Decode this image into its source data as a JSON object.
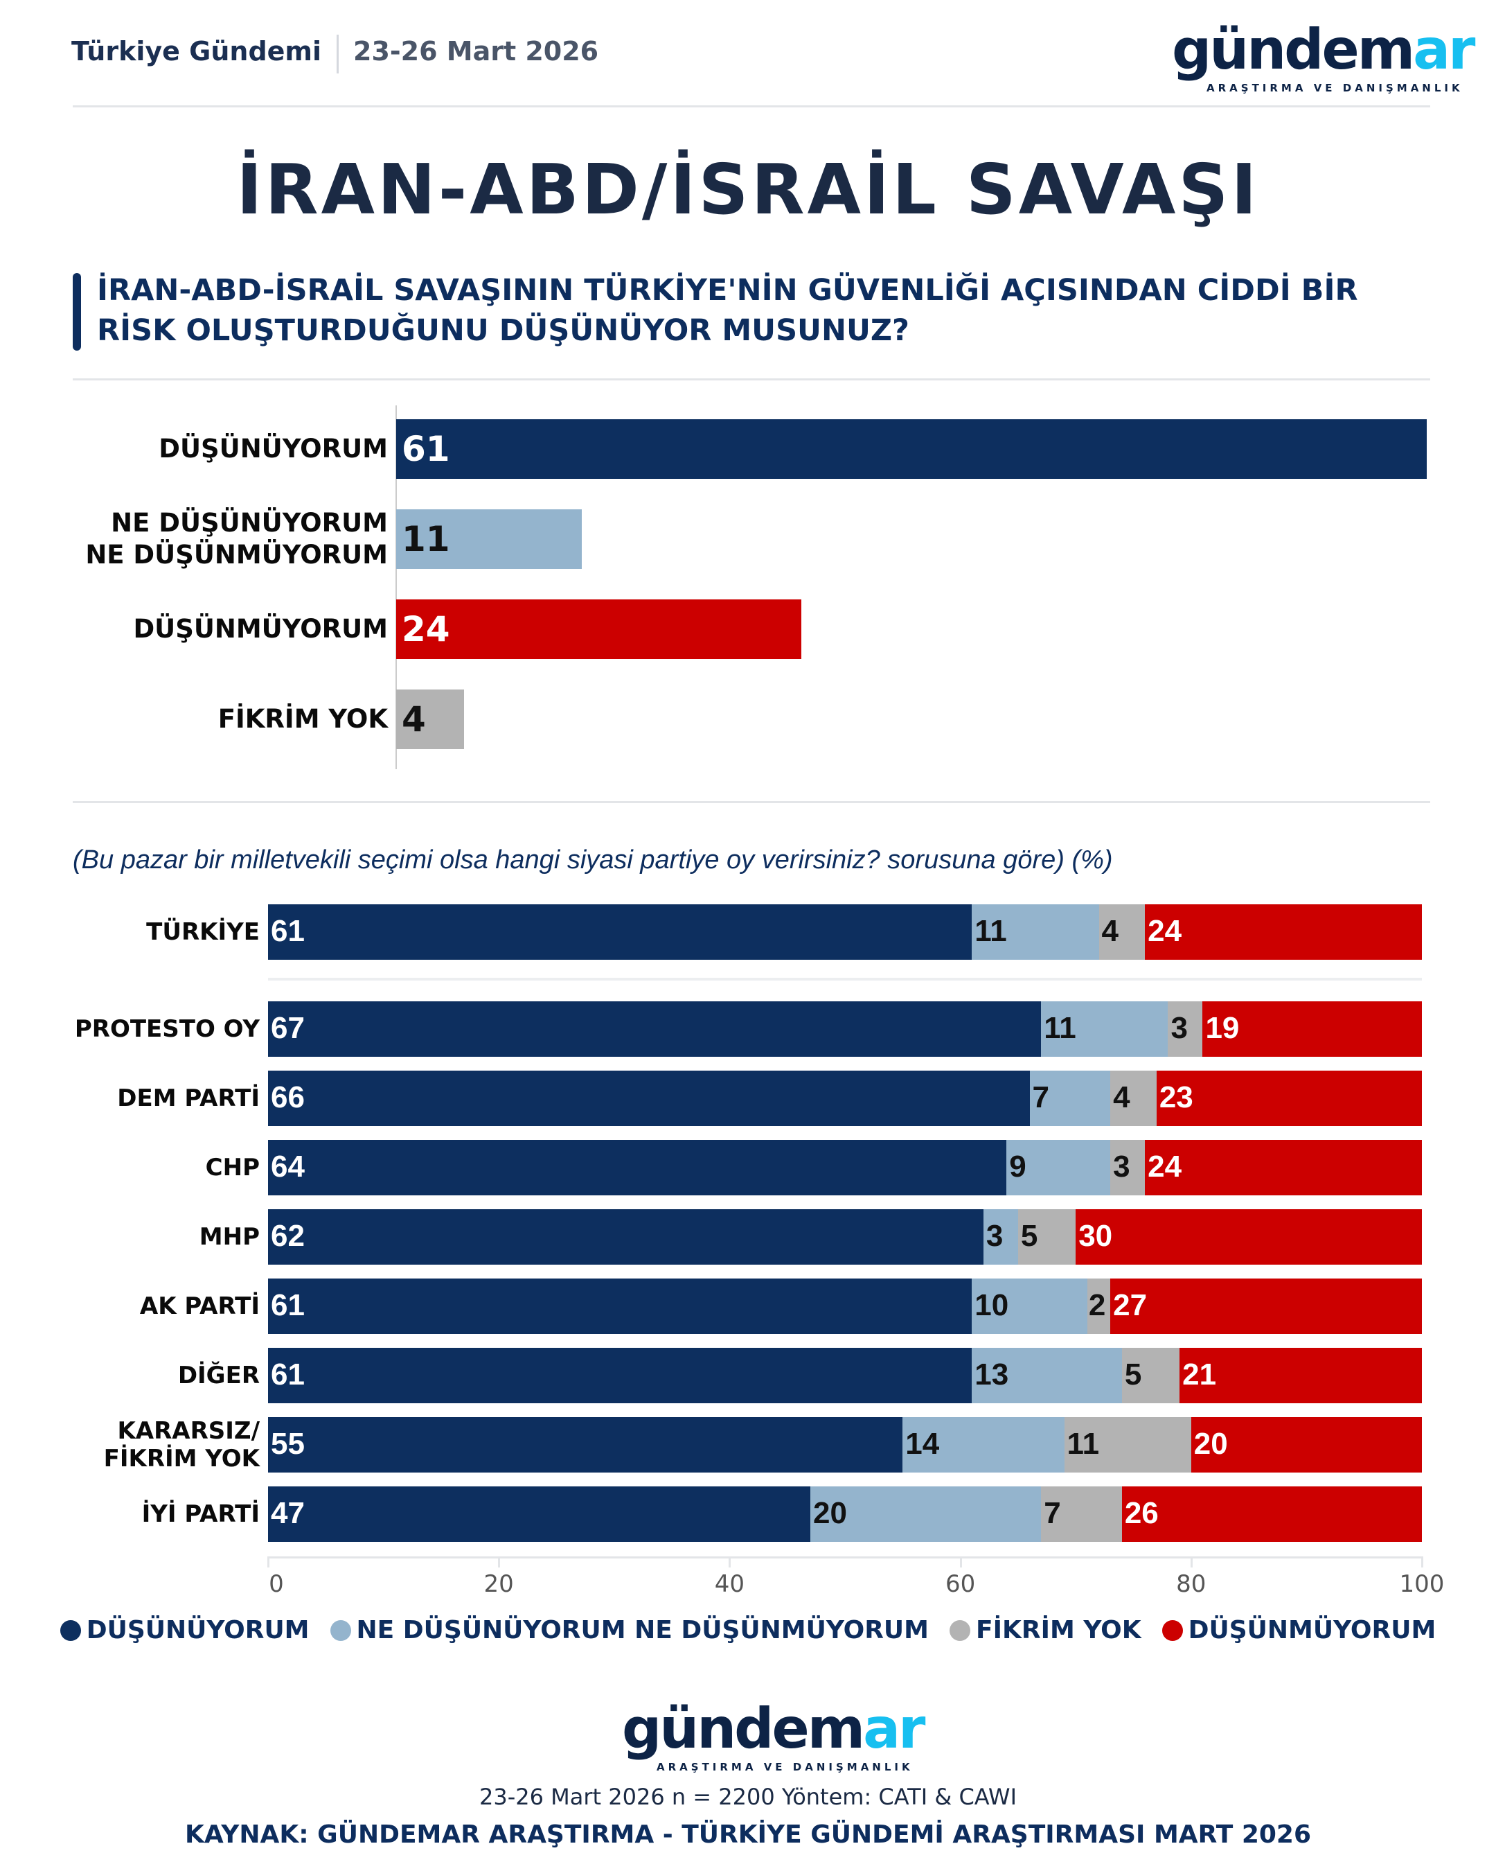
{
  "header": {
    "topic": "Türkiye Gündemi",
    "date": "23-26 Mart 2026"
  },
  "logo": {
    "main": "gündem",
    "accent": "ar",
    "tagline": "ARAŞTIRMA VE DANIŞMANLIK"
  },
  "title": "İRAN-ABD/İSRAİL SAVAŞI",
  "question": "İRAN-ABD-İSRAİL SAVAŞININ TÜRKİYE'NİN GÜVENLİĞİ AÇISINDAN CİDDİ BİR RİSK OLUŞTURDUĞUNU DÜŞÜNÜYOR MUSUNUZ?",
  "colors": {
    "dusunuyorum": "#0d2f5f",
    "neither": "#94b4cd",
    "fikrim_yok": "#b3b3b3",
    "dusunmuyorum": "#cc0000"
  },
  "chart_data": [
    {
      "type": "bar",
      "orientation": "horizontal",
      "categories": [
        "DÜŞÜNÜYORUM",
        "NE DÜŞÜNÜYORUM NE DÜŞÜNMÜYORUM",
        "DÜŞÜNMÜYORUM",
        "FİKRİM YOK"
      ],
      "category_lines": [
        [
          "DÜŞÜNÜYORUM"
        ],
        [
          "NE DÜŞÜNÜYORUM",
          "NE DÜŞÜNMÜYORUM"
        ],
        [
          "DÜŞÜNMÜYORUM"
        ],
        [
          "FİKRİM YOK"
        ]
      ],
      "values": [
        61,
        11,
        24,
        4
      ],
      "colors": [
        "#0d2f5f",
        "#94b4cd",
        "#cc0000",
        "#b3b3b3"
      ]
    },
    {
      "type": "bar",
      "stacked": true,
      "orientation": "horizontal",
      "subtitle": "(Bu pazar bir milletvekili seçimi olsa hangi siyasi partiye oy verirsiniz? sorusuna göre) (%)",
      "categories": [
        "TÜRKİYE",
        "PROTESTO OY",
        "DEM PARTİ",
        "CHP",
        "MHP",
        "AK PARTİ",
        "DİĞER",
        "KARARSIZ/ FİKRİM YOK",
        "İYİ PARTİ"
      ],
      "category_lines": [
        [
          "TÜRKİYE"
        ],
        [
          "PROTESTO OY"
        ],
        [
          "DEM PARTİ"
        ],
        [
          "CHP"
        ],
        [
          "MHP"
        ],
        [
          "AK PARTİ"
        ],
        [
          "DİĞER"
        ],
        [
          "KARARSIZ/",
          "FİKRİM YOK"
        ],
        [
          "İYİ PARTİ"
        ]
      ],
      "series": [
        {
          "name": "DÜŞÜNÜYORUM",
          "color": "#0d2f5f",
          "values": [
            61,
            67,
            66,
            64,
            62,
            61,
            61,
            55,
            47
          ]
        },
        {
          "name": "NE DÜŞÜNÜYORUM NE DÜŞÜNMÜYORUM",
          "color": "#94b4cd",
          "values": [
            11,
            11,
            7,
            9,
            3,
            10,
            13,
            14,
            20
          ]
        },
        {
          "name": "FİKRİM YOK",
          "color": "#b3b3b3",
          "values": [
            4,
            3,
            4,
            3,
            5,
            2,
            5,
            11,
            7
          ]
        },
        {
          "name": "DÜŞÜNMÜYORUM",
          "color": "#cc0000",
          "values": [
            24,
            19,
            23,
            24,
            30,
            27,
            21,
            20,
            26
          ]
        }
      ],
      "xlim": [
        0,
        100
      ],
      "xticks": [
        0,
        20,
        40,
        60,
        80,
        100
      ],
      "legend": "bottom"
    }
  ],
  "footer": {
    "method": "23-26 Mart 2026 n = 2200 Yöntem: CATI & CAWI",
    "source": "KAYNAK: GÜNDEMAR ARAŞTIRMA - TÜRKİYE GÜNDEMİ ARAŞTIRMASI MART 2026"
  }
}
